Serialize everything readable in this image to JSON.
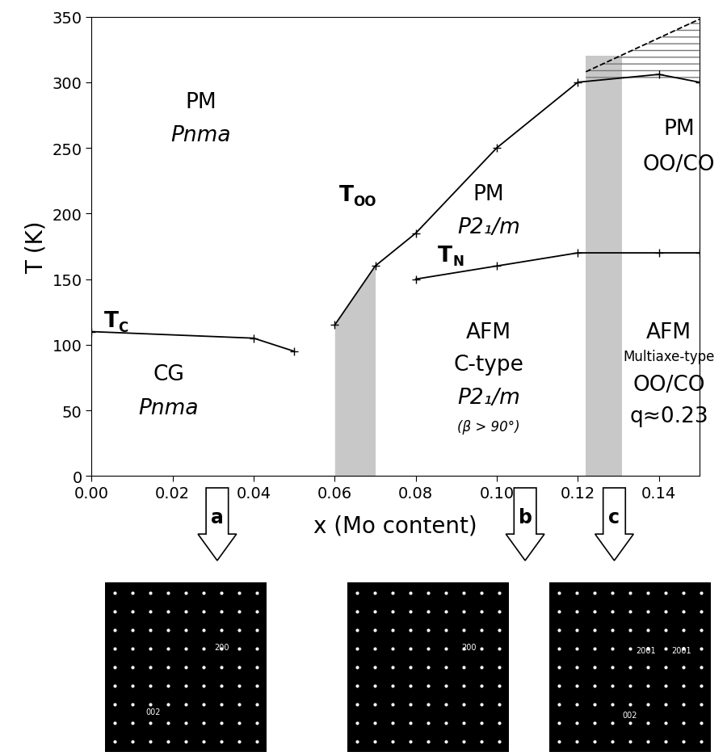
{
  "chart_data": {
    "type": "line",
    "xlabel": "x (Mo content)",
    "ylabel": "T (K)",
    "xlim": [
      0,
      0.15
    ],
    "ylim": [
      0,
      350
    ],
    "xticks": [
      {
        "value": 0,
        "label": "0.00"
      },
      {
        "value": 0.02,
        "label": "0.02"
      },
      {
        "value": 0.04,
        "label": "0.04"
      },
      {
        "value": 0.06,
        "label": "0.06"
      },
      {
        "value": 0.08,
        "label": "0.08"
      },
      {
        "value": 0.1,
        "label": "0.10"
      },
      {
        "value": 0.12,
        "label": "0.12"
      },
      {
        "value": 0.14,
        "label": "0.14"
      }
    ],
    "yticks": [
      0,
      50,
      100,
      150,
      200,
      250,
      300,
      350
    ],
    "grid": false,
    "color": "#000000",
    "series": [
      {
        "name": "T",
        "subscript": "C",
        "label_at": [
          0.003,
          114
        ],
        "marker": "plus",
        "line_style": "solid",
        "x": [
          0,
          0.04,
          0.05
        ],
        "values": [
          110,
          105,
          95
        ]
      },
      {
        "name": "T",
        "subscript": "OO",
        "label_at": [
          0.061,
          210
        ],
        "marker": "plus",
        "line_style": "solid",
        "x": [
          0.06,
          0.07,
          0.08,
          0.1,
          0.12,
          0.14,
          0.15
        ],
        "values": [
          115,
          160,
          185,
          250,
          300,
          306,
          300
        ]
      },
      {
        "name": "T",
        "subscript": "N",
        "label_at": [
          0.0855,
          164
        ],
        "marker": "plus",
        "line_style": "solid",
        "x": [
          0.08,
          0.1,
          0.12,
          0.14,
          0.15
        ],
        "values": [
          150,
          160,
          170,
          170,
          170
        ]
      },
      {
        "marker": "none",
        "line_style": "dashed",
        "x": [
          0.122,
          0.15
        ],
        "values": [
          308,
          348
        ]
      }
    ],
    "shaded_regions": [
      {
        "x": [
          0.06,
          0.07
        ],
        "top": [
          115,
          160
        ],
        "color": "#c8c8c8"
      },
      {
        "x": [
          0.122,
          0.131
        ],
        "top": [
          320,
          320
        ],
        "color": "#c8c8c8"
      }
    ],
    "hatched_region": {
      "x": [
        0.122,
        0.15
      ],
      "lower": [
        300,
        300
      ],
      "upper": [
        308,
        348
      ],
      "color": "#777777"
    },
    "annotations": [
      {
        "text": "PM",
        "x": 0.027,
        "y": 285
      },
      {
        "text": "Pnma",
        "x": 0.027,
        "y": 260,
        "italic": true
      },
      {
        "text": "CG",
        "x": 0.019,
        "y": 78
      },
      {
        "text": "Pnma",
        "x": 0.019,
        "y": 52,
        "italic": true
      },
      {
        "text": "PM",
        "x": 0.098,
        "y": 215
      },
      {
        "text": "P2₁/m",
        "x": 0.098,
        "y": 190,
        "italic": true
      },
      {
        "text": "AFM",
        "x": 0.098,
        "y": 110
      },
      {
        "text": "C-type",
        "x": 0.098,
        "y": 85
      },
      {
        "text": "P2₁/m",
        "x": 0.098,
        "y": 60,
        "italic": true
      },
      {
        "text": "(β > 90°)",
        "x": 0.098,
        "y": 38,
        "italic": true,
        "small": true
      },
      {
        "text": "PM",
        "x": 0.145,
        "y": 265
      },
      {
        "text": "OO/CO",
        "x": 0.145,
        "y": 238
      },
      {
        "text": "AFM",
        "x": 0.1425,
        "y": 110
      },
      {
        "text": "Multiaxe-type",
        "x": 0.1425,
        "y": 91,
        "small": true
      },
      {
        "text": "OO/CO",
        "x": 0.1425,
        "y": 70
      },
      {
        "text": "q≈0.23",
        "x": 0.1425,
        "y": 46
      }
    ],
    "panels": [
      {
        "letter": "a",
        "x": 0.031,
        "labels": [
          "200",
          "002"
        ]
      },
      {
        "letter": "b",
        "x": 0.107,
        "labels": [
          "200"
        ]
      },
      {
        "letter": "c",
        "x": 0.129,
        "labels": [
          "2001",
          "2001",
          "002"
        ]
      }
    ]
  }
}
